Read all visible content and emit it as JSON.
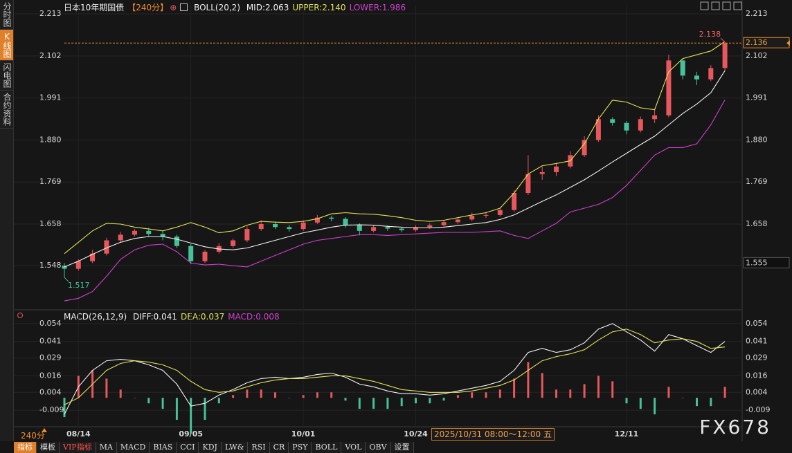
{
  "chart_data": [
    {
      "type": "candlestick",
      "title": "日本10年期国债",
      "period": "【240分】",
      "categories": [
        null,
        "08/14",
        null,
        null,
        null,
        null,
        null,
        null,
        null,
        "09/05",
        null,
        null,
        null,
        null,
        null,
        null,
        null,
        "10/01",
        null,
        null,
        null,
        null,
        null,
        null,
        null,
        "10/24",
        null,
        null,
        null,
        null,
        null,
        null,
        null,
        null,
        null,
        null,
        null,
        null,
        null,
        null,
        "12/11",
        null,
        null,
        null,
        null,
        null,
        null,
        null
      ],
      "open": [
        1.548,
        1.54,
        1.56,
        1.58,
        1.615,
        1.63,
        1.64,
        1.632,
        1.625,
        1.6,
        1.56,
        1.585,
        1.6,
        1.615,
        1.645,
        1.658,
        1.65,
        1.645,
        1.662,
        1.675,
        1.672,
        1.655,
        1.64,
        1.65,
        1.646,
        1.642,
        1.65,
        1.655,
        1.663,
        1.67,
        1.68,
        1.682,
        1.695,
        1.74,
        1.79,
        1.795,
        1.81,
        1.84,
        1.88,
        1.935,
        1.925,
        1.905,
        1.935,
        1.945,
        2.09,
        2.05,
        2.04,
        2.07
      ],
      "high": [
        1.555,
        1.565,
        1.59,
        1.622,
        1.638,
        1.645,
        1.648,
        1.64,
        1.63,
        1.605,
        1.59,
        1.608,
        1.62,
        1.652,
        1.668,
        1.665,
        1.656,
        1.668,
        1.682,
        1.68,
        1.676,
        1.66,
        1.656,
        1.655,
        1.65,
        1.655,
        1.66,
        1.668,
        1.676,
        1.688,
        1.69,
        1.702,
        1.748,
        1.84,
        1.81,
        1.818,
        1.85,
        1.89,
        1.945,
        1.94,
        1.93,
        1.942,
        1.96,
        2.105,
        2.095,
        2.06,
        2.078,
        2.138
      ],
      "low": [
        1.517,
        1.535,
        1.555,
        1.575,
        1.61,
        1.625,
        1.625,
        1.615,
        1.595,
        1.552,
        1.555,
        1.58,
        1.595,
        1.61,
        1.64,
        1.645,
        1.638,
        1.64,
        1.658,
        1.665,
        1.648,
        1.628,
        1.636,
        1.64,
        1.636,
        1.638,
        1.645,
        1.65,
        1.658,
        1.666,
        1.674,
        1.678,
        1.69,
        1.735,
        1.775,
        1.785,
        1.805,
        1.835,
        1.875,
        1.918,
        1.895,
        1.9,
        1.925,
        1.94,
        2.04,
        2.025,
        2.035,
        2.062
      ],
      "close": [
        1.54,
        1.56,
        1.58,
        1.615,
        1.63,
        1.64,
        1.632,
        1.625,
        1.6,
        1.56,
        1.585,
        1.6,
        1.615,
        1.645,
        1.658,
        1.65,
        1.645,
        1.662,
        1.675,
        1.672,
        1.655,
        1.64,
        1.65,
        1.646,
        1.642,
        1.65,
        1.655,
        1.663,
        1.67,
        1.68,
        1.682,
        1.695,
        1.74,
        1.79,
        1.795,
        1.81,
        1.84,
        1.88,
        1.935,
        1.925,
        1.905,
        1.935,
        1.945,
        2.09,
        2.05,
        2.04,
        2.07,
        2.136
      ],
      "up_color": "#e8575c",
      "down_color": "#45c29a",
      "overlay": {
        "name": "BOLL(20,2)",
        "series": [
          {
            "name": "MID:2.063",
            "color": "#f2f2f2",
            "values": [
              1.545,
              1.56,
              1.578,
              1.595,
              1.61,
              1.62,
              1.625,
              1.625,
              1.618,
              1.608,
              1.598,
              1.592,
              1.59,
              1.595,
              1.605,
              1.615,
              1.625,
              1.635,
              1.642,
              1.65,
              1.655,
              1.656,
              1.655,
              1.652,
              1.65,
              1.648,
              1.648,
              1.65,
              1.654,
              1.658,
              1.662,
              1.67,
              1.682,
              1.7,
              1.718,
              1.735,
              1.755,
              1.775,
              1.798,
              1.822,
              1.845,
              1.868,
              1.89,
              1.92,
              1.95,
              1.975,
              2.005,
              2.063
            ]
          },
          {
            "name": "UPPER:2.140",
            "color": "#e2e25a",
            "values": [
              1.58,
              1.61,
              1.64,
              1.66,
              1.658,
              1.65,
              1.645,
              1.64,
              1.65,
              1.662,
              1.65,
              1.635,
              1.64,
              1.655,
              1.665,
              1.663,
              1.662,
              1.665,
              1.672,
              1.685,
              1.688,
              1.685,
              1.684,
              1.68,
              1.675,
              1.668,
              1.665,
              1.668,
              1.675,
              1.682,
              1.688,
              1.7,
              1.74,
              1.79,
              1.812,
              1.818,
              1.825,
              1.87,
              1.935,
              1.985,
              1.98,
              1.965,
              1.96,
              2.06,
              2.095,
              2.105,
              2.115,
              2.14
            ]
          },
          {
            "name": "LOWER:1.986",
            "color": "#d040d0",
            "values": [
              1.455,
              1.462,
              1.48,
              1.52,
              1.565,
              1.59,
              1.602,
              1.605,
              1.585,
              1.555,
              1.55,
              1.552,
              1.548,
              1.545,
              1.56,
              1.575,
              1.59,
              1.605,
              1.615,
              1.62,
              1.625,
              1.63,
              1.63,
              1.628,
              1.63,
              1.632,
              1.634,
              1.636,
              1.636,
              1.636,
              1.638,
              1.64,
              1.628,
              1.62,
              1.64,
              1.66,
              1.69,
              1.7,
              1.71,
              1.728,
              1.76,
              1.8,
              1.84,
              1.86,
              1.86,
              1.87,
              1.92,
              1.986
            ]
          }
        ]
      },
      "ylim": [
        1.437,
        2.235
      ],
      "yticks": [
        2.213,
        2.102,
        1.991,
        {
          "value": 1.88,
          "label": "1.880"
        },
        1.769,
        1.658,
        1.548
      ],
      "grid": true,
      "high_label": 2.138,
      "low_label": 1.517,
      "last_price": 2.136,
      "reference_price": 1.555
    },
    {
      "type": "combo",
      "title": "MACD(26,12,9)",
      "series": [
        {
          "name": "DIFF:0.041",
          "color": "#f2f2f2",
          "values": [
            -0.012,
            0.008,
            0.02,
            0.027,
            0.028,
            0.027,
            0.024,
            0.02,
            0.01,
            -0.006,
            -0.004,
            0.002,
            0.006,
            0.011,
            0.014,
            0.015,
            0.014,
            0.015,
            0.017,
            0.018,
            0.015,
            0.01,
            0.008,
            0.005,
            0.003,
            0.003,
            0.002,
            0.003,
            0.005,
            0.007,
            0.009,
            0.012,
            0.02,
            0.033,
            0.036,
            0.033,
            0.035,
            0.04,
            0.05,
            0.054,
            0.048,
            0.042,
            0.034,
            0.046,
            0.043,
            0.038,
            0.033,
            0.041
          ]
        },
        {
          "name": "DEA:0.037",
          "color": "#e2e25a",
          "values": [
            -0.005,
            0.0,
            0.01,
            0.02,
            0.025,
            0.027,
            0.026,
            0.024,
            0.02,
            0.012,
            0.006,
            0.004,
            0.005,
            0.008,
            0.011,
            0.013,
            0.014,
            0.014,
            0.015,
            0.016,
            0.016,
            0.014,
            0.012,
            0.009,
            0.006,
            0.005,
            0.004,
            0.004,
            0.004,
            0.005,
            0.007,
            0.009,
            0.013,
            0.02,
            0.027,
            0.03,
            0.032,
            0.035,
            0.042,
            0.048,
            0.05,
            0.046,
            0.04,
            0.042,
            0.043,
            0.041,
            0.036,
            0.037
          ]
        }
      ],
      "histogram": {
        "name": "MACD:0.008",
        "color": "#d040d0",
        "up_color": "#e8575c",
        "down_color": "#45c29a",
        "values": [
          -0.014,
          0.016,
          0.02,
          0.014,
          0.006,
          0.0,
          -0.004,
          -0.008,
          -0.016,
          -0.026,
          -0.016,
          -0.004,
          0.002,
          0.006,
          0.006,
          0.004,
          0.0,
          0.002,
          0.004,
          0.004,
          -0.002,
          -0.008,
          -0.008,
          -0.008,
          -0.006,
          -0.004,
          -0.004,
          -0.002,
          0.002,
          0.004,
          0.004,
          0.006,
          0.014,
          0.026,
          0.018,
          0.006,
          0.006,
          0.01,
          0.016,
          0.012,
          -0.004,
          -0.008,
          -0.012,
          0.008,
          0.0,
          -0.006,
          -0.006,
          0.008
        ]
      },
      "ylim": [
        -0.02,
        0.063
      ],
      "yticks": [
        0.054,
        0.041,
        0.029,
        0.016,
        0.004,
        -0.009
      ],
      "grid": true
    }
  ],
  "period_selector": "240分",
  "crosshair_label": "2025/10/31 08:00～12:00 五",
  "side_tabs": {
    "items": [
      "分时图",
      "K线图",
      "闪电图",
      "合约资料"
    ],
    "active": 1
  },
  "toolbar": {
    "items": [
      "指标",
      "模板",
      "VIP指标",
      "MA",
      "MACD",
      "BIAS",
      "CCI",
      "KDJ",
      "LW&",
      "RSI",
      "CR",
      "PSY",
      "BOLL",
      "VOL",
      "OBV",
      "设置"
    ],
    "active": 0
  },
  "watermark": "FX678"
}
